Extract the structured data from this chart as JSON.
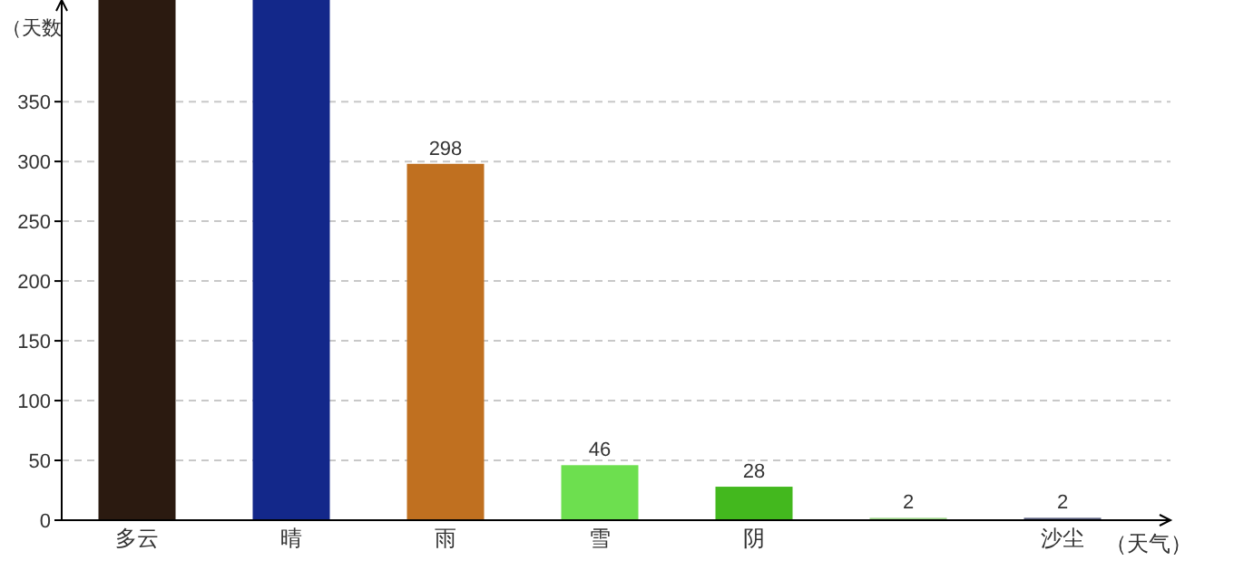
{
  "chart_data": {
    "type": "bar",
    "xlabel": "（天气）",
    "ylabel": "（天数",
    "categories": [
      "多云",
      "晴",
      "雨",
      "雪",
      "阴",
      null,
      "沙尘"
    ],
    "values": [
      435,
      435,
      298,
      46,
      28,
      2,
      2
    ],
    "value_labels": [
      null,
      null,
      "298",
      "46",
      "28",
      "2",
      "2"
    ],
    "colors": [
      "#2b1a10",
      "#13288a",
      "#c07020",
      "#6ddf4f",
      "#43b81e",
      "#9ed68a",
      "#5a6080"
    ],
    "ylim": [
      0,
      435
    ],
    "yticks": [
      0,
      50,
      100,
      150,
      200,
      250,
      300,
      350
    ],
    "grid": "y"
  }
}
